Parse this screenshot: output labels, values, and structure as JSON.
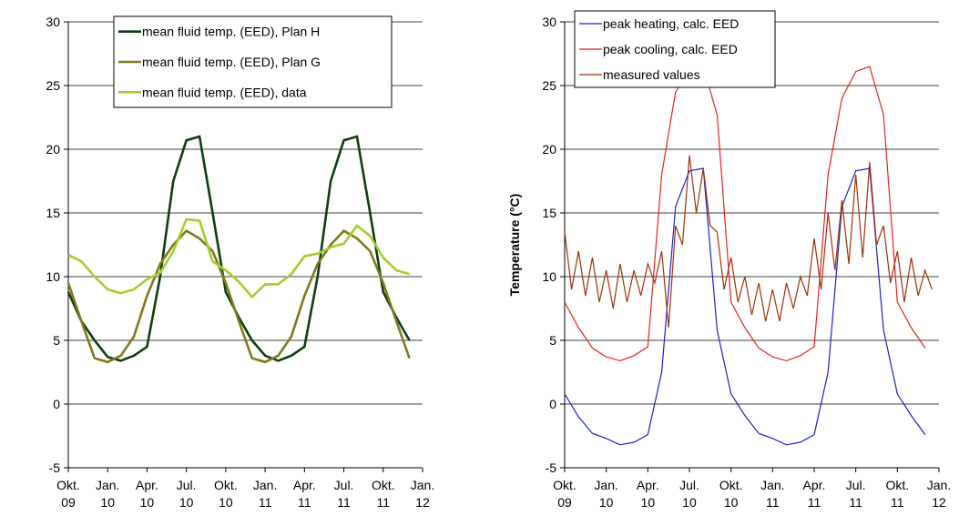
{
  "chart_data": [
    {
      "type": "line",
      "legend": "upper-center",
      "grid": true,
      "xlim": [
        0,
        27
      ],
      "ylim": [
        -5,
        30
      ],
      "yticks": [
        -5,
        0,
        5,
        10,
        15,
        20,
        25,
        30
      ],
      "xticks": [
        {
          "value": 0,
          "label": [
            "Okt.",
            "09"
          ]
        },
        {
          "value": 3,
          "label": [
            "Jan.",
            "10"
          ]
        },
        {
          "value": 6,
          "label": [
            "Apr.",
            "10"
          ]
        },
        {
          "value": 9,
          "label": [
            "Jul.",
            "10"
          ]
        },
        {
          "value": 12,
          "label": [
            "Okt.",
            "10"
          ]
        },
        {
          "value": 15,
          "label": [
            "Jan.",
            "11"
          ]
        },
        {
          "value": 18,
          "label": [
            "Apr.",
            "11"
          ]
        },
        {
          "value": 21,
          "label": [
            "Jul.",
            "11"
          ]
        },
        {
          "value": 24,
          "label": [
            "Okt.",
            "11"
          ]
        },
        {
          "value": 27,
          "label": [
            "Jan.",
            "12"
          ]
        }
      ],
      "x": [
        0,
        1,
        2,
        3,
        4,
        5,
        6,
        7,
        8,
        9,
        10,
        11,
        12,
        13,
        14,
        15,
        16,
        17,
        18,
        19,
        20,
        21,
        22,
        23,
        24,
        25,
        26
      ],
      "series": [
        {
          "name": "mean fluid temp. (EED), Plan H",
          "color": "#0f3d0f",
          "values": [
            8.8,
            6.5,
            5.0,
            3.7,
            3.4,
            3.8,
            4.5,
            10,
            17.5,
            20.7,
            21.0,
            15,
            8.8,
            6.8,
            5.0,
            3.8,
            3.4,
            3.8,
            4.5,
            10,
            17.5,
            20.7,
            21.0,
            15,
            8.8,
            6.8,
            5.0
          ]
        },
        {
          "name": "mean fluid temp. (EED), Plan G",
          "color": "#7f7a1c",
          "values": [
            9.5,
            6.5,
            3.6,
            3.3,
            3.8,
            5.3,
            8.5,
            11,
            12.5,
            13.6,
            13.0,
            12,
            9.5,
            6.5,
            3.6,
            3.3,
            3.8,
            5.3,
            8.5,
            11,
            12.5,
            13.6,
            13.0,
            12,
            9.5,
            6.5,
            3.6
          ]
        },
        {
          "name": "mean fluid temp. (EED), data",
          "color": "#a6cc2e",
          "values": [
            11.7,
            11.2,
            10,
            9.0,
            8.7,
            9.0,
            9.8,
            10.3,
            12,
            14.5,
            14.4,
            11.2,
            10.5,
            9.6,
            8.4,
            9.4,
            9.4,
            10.2,
            11.6,
            11.8,
            12.3,
            12.6,
            14.0,
            13.2,
            11.5,
            10.5,
            10.2
          ]
        }
      ]
    },
    {
      "type": "line",
      "legend": "upper-left",
      "grid": true,
      "ylabel": "Temperature (°C)",
      "xlim": [
        0,
        27
      ],
      "ylim": [
        -5,
        30
      ],
      "yticks": [
        -5,
        0,
        5,
        10,
        15,
        20,
        25,
        30
      ],
      "xticks": [
        {
          "value": 0,
          "label": [
            "Okt.",
            "09"
          ]
        },
        {
          "value": 3,
          "label": [
            "Jan.",
            "10"
          ]
        },
        {
          "value": 6,
          "label": [
            "Apr.",
            "10"
          ]
        },
        {
          "value": 9,
          "label": [
            "Jul.",
            "10"
          ]
        },
        {
          "value": 12,
          "label": [
            "Okt.",
            "10"
          ]
        },
        {
          "value": 15,
          "label": [
            "Jan.",
            "11"
          ]
        },
        {
          "value": 18,
          "label": [
            "Apr.",
            "11"
          ]
        },
        {
          "value": 21,
          "label": [
            "Jul.",
            "11"
          ]
        },
        {
          "value": 24,
          "label": [
            "Okt.",
            "11"
          ]
        },
        {
          "value": 27,
          "label": [
            "Jan.",
            "12"
          ]
        }
      ],
      "series": [
        {
          "name": "peak heating, calc. EED",
          "color": "#1f1fcc",
          "x": [
            0,
            1,
            2,
            3,
            4,
            5,
            6,
            7,
            8,
            9,
            10,
            11,
            12,
            13,
            14,
            15,
            16,
            17,
            18,
            19,
            20,
            21,
            22,
            23,
            24,
            25,
            26
          ],
          "values": [
            0.8,
            -1.0,
            -2.3,
            -2.7,
            -3.2,
            -3.0,
            -2.4,
            2.5,
            15.5,
            18.3,
            18.5,
            5.8,
            0.8,
            -0.9,
            -2.3,
            -2.7,
            -3.2,
            -3.0,
            -2.4,
            2.5,
            15.5,
            18.3,
            18.5,
            5.8,
            0.8,
            -0.9,
            -2.4
          ]
        },
        {
          "name": "peak cooling, calc. EED",
          "color": "#e82020",
          "x": [
            0,
            1,
            2,
            3,
            4,
            5,
            6,
            7,
            8,
            9,
            10,
            11,
            12,
            13,
            14,
            15,
            16,
            17,
            18,
            19,
            20,
            21,
            22,
            23,
            24,
            25,
            26
          ],
          "values": [
            8,
            6,
            4.4,
            3.7,
            3.4,
            3.8,
            4.5,
            18,
            24.5,
            26,
            26.5,
            22.7,
            8,
            6,
            4.4,
            3.7,
            3.4,
            3.8,
            4.5,
            18,
            24,
            26.1,
            26.5,
            22.7,
            8,
            6,
            4.4
          ]
        },
        {
          "name": "measured values",
          "color": "#a0320a",
          "x": [
            0,
            0.5,
            1,
            1.5,
            2,
            2.5,
            3,
            3.5,
            4,
            4.5,
            5,
            5.5,
            6,
            6.5,
            7,
            7.5,
            8,
            8.5,
            9,
            9.5,
            10,
            10.5,
            11,
            11.5,
            12,
            12.5,
            13,
            13.5,
            14,
            14.5,
            15,
            15.5,
            16,
            16.5,
            17,
            17.5,
            18,
            18.5,
            19,
            19.5,
            20,
            20.5,
            21,
            21.5,
            22,
            22.5,
            23,
            23.5,
            24,
            24.5,
            25,
            25.5,
            26,
            26.5
          ],
          "values": [
            13.5,
            9,
            12,
            8.5,
            11.5,
            8,
            10.5,
            7.5,
            11,
            8,
            10.5,
            8.5,
            11,
            9.5,
            12,
            6,
            14,
            12.5,
            19.5,
            15,
            18.5,
            14,
            13.5,
            9,
            11.5,
            8,
            10,
            7,
            9.5,
            6.5,
            9,
            6.5,
            9.5,
            7.5,
            10,
            8.5,
            13,
            9,
            15,
            10.5,
            16,
            11,
            18,
            11.5,
            19,
            12.5,
            14,
            9.5,
            12,
            8,
            11.5,
            8.5,
            10.5,
            9
          ]
        }
      ]
    }
  ]
}
